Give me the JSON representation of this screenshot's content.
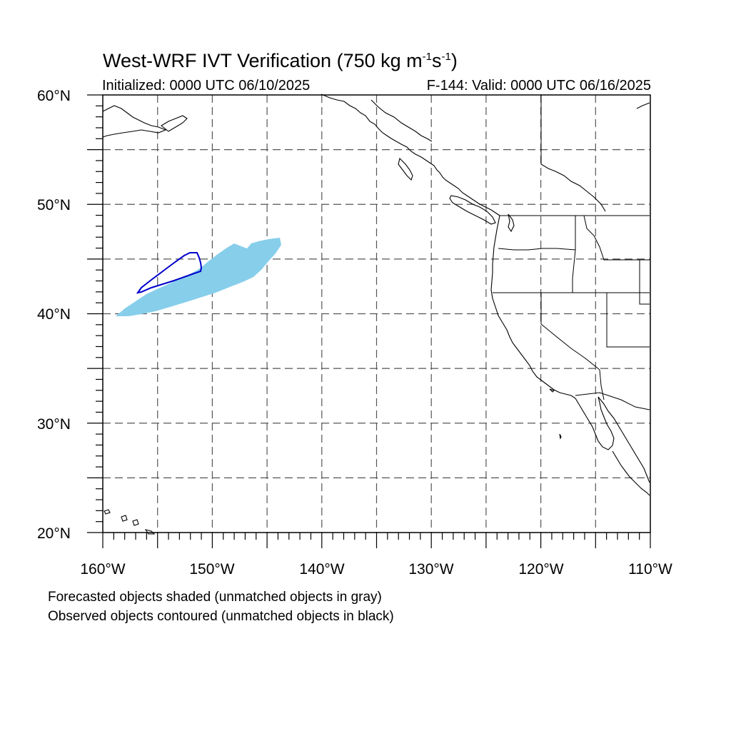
{
  "title": {
    "main": "West-WRF IVT Verification (750 kg m",
    "exp1": "-1",
    "s": "s",
    "exp2": "-1",
    "close": ")"
  },
  "subtitle": {
    "initialized": "Initialized: 0000 UTC 06/10/2025",
    "valid": "F-144: Valid: 0000 UTC 06/16/2025"
  },
  "lat_labels": [
    "60°N",
    "50°N",
    "40°N",
    "30°N",
    "20°N"
  ],
  "lon_labels": [
    "160°W",
    "150°W",
    "140°W",
    "130°W",
    "120°W",
    "110°W"
  ],
  "notes": {
    "forecast": "Forecasted objects shaded (unmatched objects in gray)",
    "observed": "Observed objects contoured (unmatched objects in black)"
  },
  "map_extent": {
    "lon_min": -160,
    "lon_max": -110,
    "lat_min": 20,
    "lat_max": 60
  },
  "colors": {
    "forecast_fill": "#87ceeb",
    "observed_contour": "#0000cc",
    "coastline": "#000000",
    "grid": "#555555"
  }
}
